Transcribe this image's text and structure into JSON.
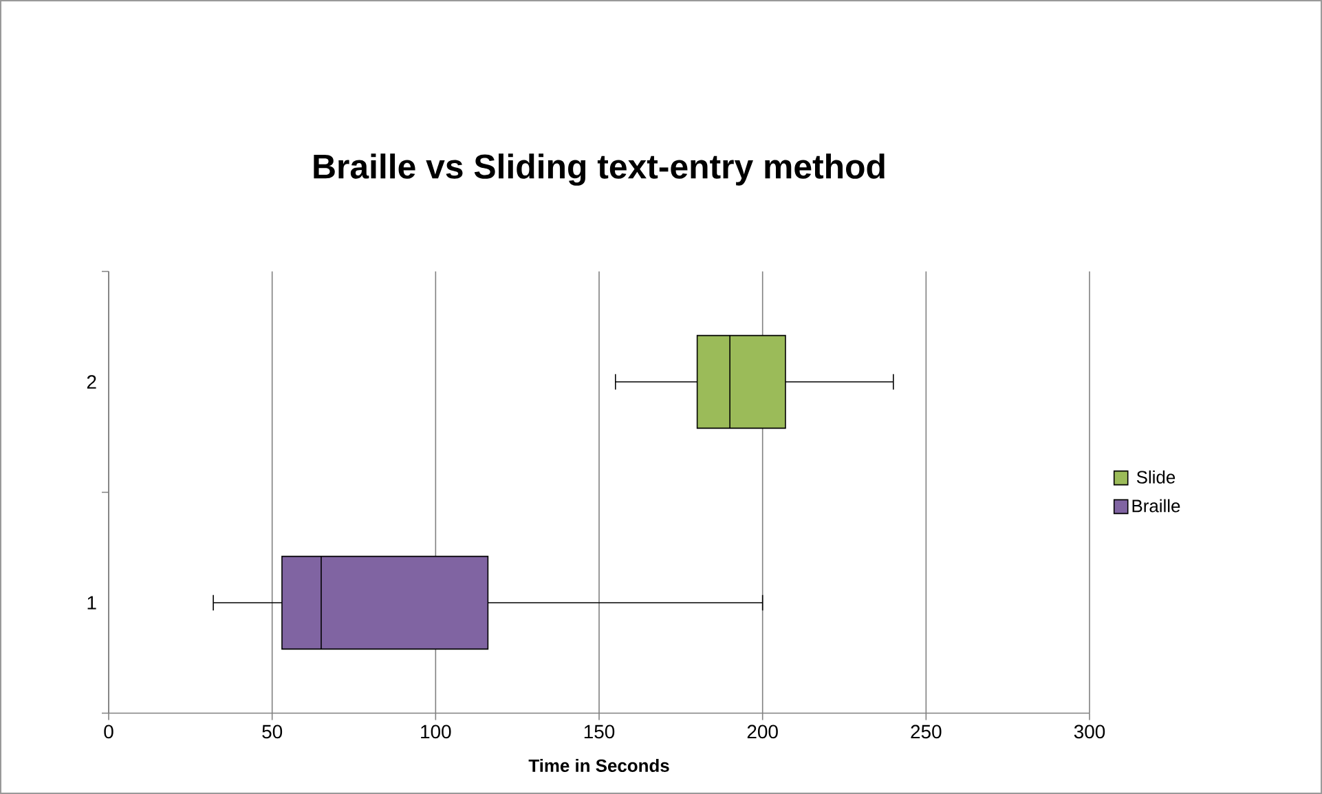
{
  "chart_data": {
    "type": "box",
    "title": "Braille vs Sliding text-entry method",
    "xlabel": "Time in Seconds",
    "categories": [
      "2",
      "1"
    ],
    "orientation": "horizontal",
    "xlim": [
      0,
      300
    ],
    "xticks": [
      0,
      50,
      100,
      150,
      200,
      250,
      300
    ],
    "grid": "x",
    "legend": "right",
    "series": [
      {
        "name": "Slide",
        "color": "#9bbb59",
        "boxes": [
          {
            "low": 155,
            "q1": 180,
            "median": 190,
            "q3": 207,
            "high": 240
          },
          null
        ]
      },
      {
        "name": "Braille",
        "color": "#8064a2",
        "boxes": [
          null,
          {
            "low": 32,
            "q1": 53,
            "median": 65,
            "q3": 116,
            "high": 200
          }
        ]
      }
    ]
  }
}
